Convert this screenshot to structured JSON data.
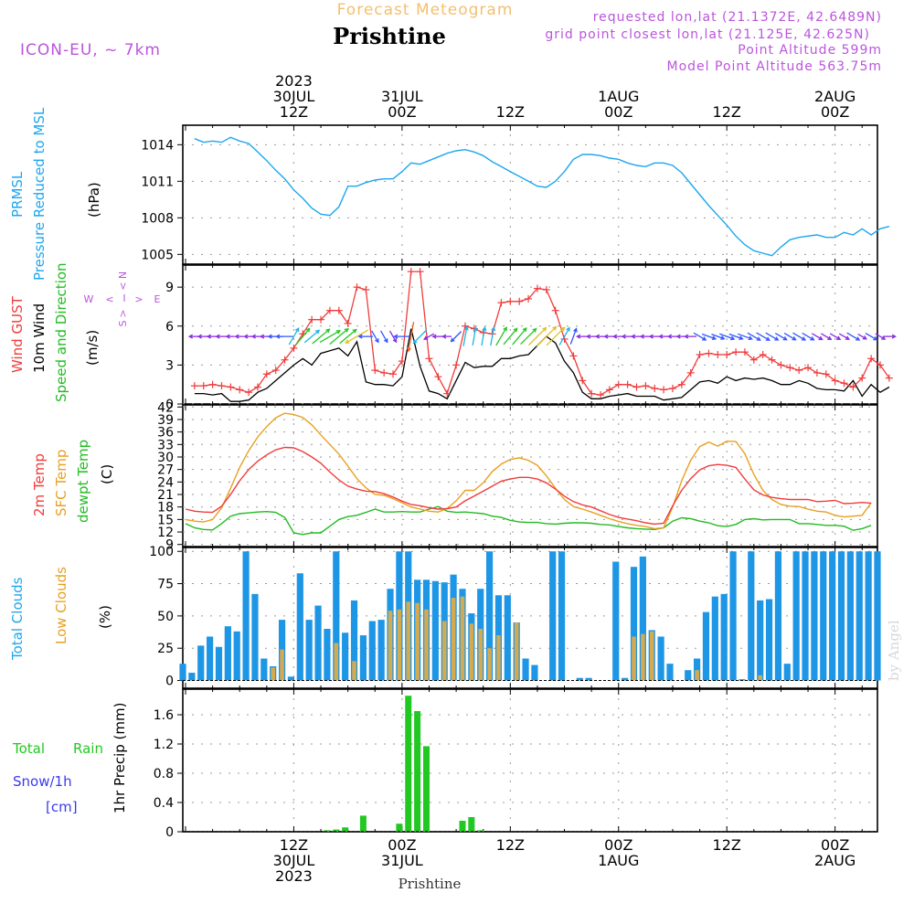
{
  "header": {
    "product": "Forecast Meteogram",
    "location": "Prishtine",
    "model": "ICON-EU, ~ 7km",
    "requested": "requested lon,lat (21.1372E, 42.6489N)",
    "grid_point": "grid point closest lon,lat (21.125E, 42.625N)",
    "point_alt": "Point Altitude 599m",
    "model_alt": "Model Point Altitude 563.75m",
    "watermark": "by Angel",
    "bottom_label": "Prishtine"
  },
  "time_axis": {
    "top_labels": [
      {
        "hour": 12,
        "lines": [
          "2023",
          "30JUL",
          "12Z"
        ]
      },
      {
        "hour": 24,
        "lines": [
          "31JUL",
          "00Z"
        ]
      },
      {
        "hour": 36,
        "lines": [
          "12Z"
        ]
      },
      {
        "hour": 48,
        "lines": [
          "1AUG",
          "00Z"
        ]
      },
      {
        "hour": 60,
        "lines": [
          "12Z"
        ]
      },
      {
        "hour": 72,
        "lines": [
          "2AUG",
          "00Z"
        ]
      }
    ],
    "bottom_labels": [
      {
        "hour": 12,
        "lines": [
          "12Z",
          "30JUL",
          "2023"
        ]
      },
      {
        "hour": 24,
        "lines": [
          "00Z",
          "31JUL"
        ]
      },
      {
        "hour": 36,
        "lines": [
          "12Z"
        ]
      },
      {
        "hour": 48,
        "lines": [
          "00Z",
          "1AUG"
        ]
      },
      {
        "hour": 60,
        "lines": [
          "12Z"
        ]
      },
      {
        "hour": 72,
        "lines": [
          "00Z",
          "2AUG"
        ]
      }
    ]
  },
  "panel_labels": {
    "pressure": [
      "PRMSL",
      "Pressure Reduced to MSL",
      "(hPa)"
    ],
    "wind": [
      "Wind GUST",
      "10m Wind",
      "Speed and Direction",
      "(m/s)"
    ],
    "compass": [
      "N",
      "<",
      "I",
      ">",
      "S",
      "W",
      "E"
    ],
    "temp": [
      "2m Temp",
      "SFC Temp",
      "dewpt Temp",
      "(C)"
    ],
    "clouds": [
      "Total Clouds",
      "Low Clouds",
      "(%)"
    ],
    "precip": [
      "Total",
      "Rain",
      "Snow/1h",
      "[cm]",
      "1hr Precip (mm)"
    ]
  },
  "colors": {
    "pressure": "#1ea6ee",
    "gust": "#f03c3c",
    "wind": "#000000",
    "temp2m": "#f03c3c",
    "sfc": "#e8a020",
    "dewpt": "#22bb22",
    "total_cloud": "#1e96e6",
    "low_cloud": "#d4aa50",
    "rain": "#22c822",
    "purple": "#bb55dd"
  },
  "chart_data": [
    {
      "type": "line",
      "title": "PRMSL Pressure Reduced to MSL",
      "ylabel": "(hPa)",
      "yticks": [
        1005,
        1008,
        1011,
        1014
      ],
      "ylim": [
        1004.2,
        1015.6
      ],
      "series": [
        {
          "name": "PRMSL",
          "x_start": 1,
          "values": [
            1014.5,
            1014.2,
            1014.3,
            1014.2,
            1014.6,
            1014.3,
            1014.1,
            1013.4,
            1012.7,
            1011.9,
            1011.2,
            1010.3,
            1009.6,
            1008.8,
            1008.3,
            1008.2,
            1008.9,
            1010.6,
            1010.6,
            1010.9,
            1011.1,
            1011.2,
            1011.2,
            1011.8,
            1012.5,
            1012.4,
            1012.7,
            1013.0,
            1013.3,
            1013.5,
            1013.6,
            1013.4,
            1013.1,
            1012.6,
            1012.2,
            1011.8,
            1011.4,
            1011.0,
            1010.6,
            1010.5,
            1011.0,
            1011.8,
            1012.8,
            1013.2,
            1013.2,
            1013.1,
            1012.9,
            1012.8,
            1012.5,
            1012.3,
            1012.2,
            1012.5,
            1012.5,
            1012.3,
            1011.7,
            1010.8,
            1009.9,
            1009.0,
            1008.2,
            1007.4,
            1006.5,
            1005.8,
            1005.3,
            1005.1,
            1004.9,
            1005.6,
            1006.2,
            1006.4,
            1006.5,
            1006.6,
            1006.4,
            1006.4,
            1006.8,
            1006.6,
            1007.1,
            1006.6,
            1007.1,
            1007.3
          ]
        }
      ]
    },
    {
      "type": "line",
      "title": "Wind GUST / 10m Wind Speed and Direction",
      "ylabel": "(m/s)",
      "yticks": [
        0,
        3,
        6,
        9
      ],
      "ylim": [
        0,
        10.7
      ],
      "series": [
        {
          "name": "Wind GUST",
          "x_start": 1,
          "values": [
            1.4,
            1.4,
            1.5,
            1.4,
            1.3,
            1.1,
            0.9,
            1.3,
            2.3,
            2.6,
            3.4,
            4.3,
            5.4,
            6.5,
            6.5,
            7.2,
            7.2,
            6.2,
            9.0,
            8.8,
            2.6,
            2.4,
            2.3,
            3.3,
            10.2,
            10.2,
            3.5,
            2.1,
            0.8,
            3.0,
            6.0,
            5.8,
            5.5,
            5.4,
            7.8,
            7.9,
            7.9,
            8.1,
            8.9,
            8.8,
            7.2,
            5.0,
            3.7,
            1.8,
            0.8,
            0.7,
            1.1,
            1.5,
            1.5,
            1.3,
            1.4,
            1.2,
            1.1,
            1.2,
            1.5,
            2.4,
            3.8,
            3.9,
            3.8,
            3.8,
            4.0,
            4.0,
            3.4,
            3.8,
            3.4,
            3.0,
            2.8,
            2.6,
            2.8,
            2.4,
            2.3,
            1.8,
            1.6,
            1.3,
            2.0,
            3.5,
            3.0,
            2.0
          ]
        },
        {
          "name": "10m Wind",
          "x_start": 1,
          "values": [
            0.8,
            0.8,
            0.7,
            0.8,
            0.2,
            0.2,
            0.3,
            0.9,
            1.2,
            1.8,
            2.4,
            3.0,
            3.5,
            3.0,
            3.9,
            4.1,
            4.3,
            3.7,
            4.8,
            1.7,
            1.5,
            1.5,
            1.4,
            2.1,
            5.8,
            2.9,
            1.0,
            0.8,
            0.4,
            1.8,
            3.2,
            2.8,
            2.9,
            2.9,
            3.5,
            3.5,
            3.7,
            3.8,
            4.5,
            5.2,
            4.7,
            3.3,
            2.4,
            0.9,
            0.4,
            0.4,
            0.6,
            0.7,
            0.8,
            0.6,
            0.6,
            0.6,
            0.3,
            0.4,
            0.5,
            1.1,
            1.7,
            1.8,
            1.6,
            2.1,
            1.8,
            2.0,
            1.9,
            2.0,
            1.8,
            1.5,
            1.5,
            1.8,
            1.6,
            1.2,
            1.1,
            1.1,
            1.0,
            1.8,
            0.6,
            1.5,
            0.9,
            1.3
          ]
        },
        {
          "name": "Wind direction (deg, from)",
          "x_start": 1,
          "values": [
            90,
            90,
            90,
            90,
            90,
            90,
            90,
            90,
            90,
            90,
            90,
            210,
            220,
            230,
            230,
            240,
            230,
            230,
            60,
            90,
            330,
            330,
            330,
            90,
            10,
            45,
            60,
            90,
            90,
            45,
            190,
            190,
            190,
            190,
            210,
            220,
            220,
            225,
            225,
            225,
            225,
            210,
            200,
            90,
            90,
            90,
            90,
            90,
            90,
            90,
            90,
            90,
            90,
            90,
            90,
            90,
            300,
            290,
            290,
            290,
            290,
            290,
            300,
            300,
            300,
            300,
            300,
            300,
            300,
            300,
            300,
            300,
            300,
            300,
            300,
            300,
            300,
            270
          ]
        }
      ]
    },
    {
      "type": "line",
      "title": "Temperatures",
      "ylabel": "(C)",
      "yticks": [
        9,
        12,
        15,
        18,
        21,
        24,
        27,
        30,
        33,
        36,
        39,
        42
      ],
      "ylim": [
        8.5,
        42.5
      ],
      "series": [
        {
          "name": "2m Temp",
          "x_start": 0,
          "values": [
            17.5,
            17.0,
            16.8,
            16.7,
            18.2,
            21.0,
            24.3,
            27.0,
            29.0,
            30.5,
            31.7,
            32.3,
            32.2,
            31.3,
            30.0,
            28.5,
            26.4,
            24.5,
            23.0,
            22.3,
            21.8,
            21.7,
            21.2,
            20.4,
            19.4,
            18.6,
            18.3,
            17.8,
            17.5,
            17.6,
            18.0,
            19.5,
            20.6,
            21.8,
            23.0,
            24.2,
            24.7,
            25.1,
            25.1,
            24.7,
            23.8,
            22.3,
            20.6,
            19.3,
            18.5,
            18.0,
            17.1,
            16.2,
            15.5,
            15.1,
            14.7,
            14.2,
            13.9,
            14.1,
            18.3,
            22.0,
            24.8,
            26.9,
            27.9,
            28.2,
            28.0,
            27.5,
            24.7,
            22.1,
            20.9,
            20.3,
            20.0,
            19.8,
            19.8,
            19.8,
            19.3,
            19.4,
            19.6,
            18.8,
            18.9,
            19.1,
            18.9
          ]
        },
        {
          "name": "SFC Temp",
          "x_start": 0,
          "values": [
            15.0,
            14.6,
            14.4,
            15.0,
            17.8,
            22.5,
            27.5,
            31.5,
            34.8,
            37.3,
            39.4,
            40.5,
            40.2,
            39.5,
            37.7,
            35.3,
            33.0,
            30.7,
            27.8,
            24.8,
            22.6,
            21.0,
            20.8,
            20.0,
            19.0,
            18.0,
            17.5,
            17.0,
            16.8,
            17.6,
            19.5,
            22.0,
            22.0,
            23.8,
            26.5,
            28.3,
            29.4,
            29.8,
            29.2,
            28.0,
            25.5,
            22.5,
            19.8,
            18.1,
            17.5,
            16.8,
            16.0,
            15.2,
            14.5,
            14.0,
            13.6,
            13.3,
            12.8,
            13.0,
            18.0,
            24.3,
            29.2,
            32.5,
            33.6,
            32.6,
            33.8,
            33.7,
            30.8,
            25.8,
            22.0,
            19.8,
            18.6,
            18.2,
            18.1,
            17.5,
            17.0,
            16.8,
            16.0,
            15.6,
            15.8,
            16.0,
            19.0
          ]
        },
        {
          "name": "dewpt Temp",
          "x_start": 0,
          "values": [
            14.0,
            13.0,
            12.6,
            12.5,
            14.0,
            15.8,
            16.4,
            16.6,
            16.8,
            16.9,
            16.7,
            15.5,
            11.8,
            11.4,
            11.8,
            11.8,
            13.4,
            15.0,
            15.7,
            16.0,
            16.7,
            17.5,
            16.8,
            16.8,
            16.9,
            16.8,
            16.8,
            17.5,
            18.1,
            17.0,
            16.7,
            16.8,
            16.6,
            16.4,
            15.8,
            15.5,
            14.8,
            14.4,
            14.3,
            14.3,
            14.0,
            13.9,
            14.1,
            14.2,
            14.2,
            14.1,
            13.8,
            13.7,
            13.3,
            13.0,
            12.8,
            12.7,
            12.6,
            13.0,
            14.6,
            15.4,
            15.2,
            14.6,
            14.2,
            13.5,
            13.3,
            13.8,
            15.0,
            15.2,
            14.9,
            15.0,
            15.0,
            15.0,
            14.0,
            14.0,
            13.8,
            13.6,
            13.6,
            13.4,
            12.4,
            12.8,
            13.6
          ]
        }
      ]
    },
    {
      "type": "bar",
      "title": "Total Clouds / Low Clouds",
      "ylabel": "(%)",
      "yticks": [
        0,
        25,
        50,
        75,
        100
      ],
      "ylim": [
        -6,
        103
      ],
      "series": [
        {
          "name": "Total Clouds",
          "x_start": 0,
          "values": [
            13,
            6,
            27,
            34,
            26,
            42,
            38,
            100,
            67,
            17,
            11,
            47,
            3,
            83,
            47,
            58,
            40,
            100,
            37,
            62,
            35,
            46,
            47,
            71,
            100,
            100,
            78,
            78,
            77,
            76,
            82,
            71,
            52,
            71,
            100,
            66,
            66,
            45,
            17,
            12,
            0,
            100,
            100,
            0,
            2,
            2,
            0,
            0,
            92,
            2,
            88,
            96,
            39,
            34,
            13,
            0,
            8,
            17,
            53,
            65,
            67,
            100,
            1,
            100,
            62,
            63,
            100,
            13,
            100,
            100,
            100,
            100,
            100,
            100,
            100,
            100,
            100,
            100
          ]
        },
        {
          "name": "Low Clouds",
          "x_start": 0,
          "values": [
            0,
            0,
            0,
            0,
            0,
            0,
            0,
            0,
            0,
            0,
            10,
            24,
            0,
            0,
            0,
            0,
            0,
            29,
            0,
            15,
            0,
            0,
            0,
            54,
            55,
            61,
            60,
            55,
            0,
            46,
            64,
            65,
            44,
            40,
            25,
            35,
            0,
            45,
            0,
            0,
            0,
            0,
            0,
            0,
            0,
            0,
            0,
            0,
            0,
            0,
            34,
            36,
            38,
            0,
            0,
            0,
            0,
            8,
            0,
            0,
            0,
            0,
            0,
            0,
            4,
            0,
            0,
            0,
            0,
            0,
            0,
            0,
            0,
            0,
            0,
            0,
            0,
            0
          ]
        }
      ]
    },
    {
      "type": "bar",
      "title": "1hr Precip",
      "ylabel": "1hr Precip (mm)",
      "yticks": [
        0,
        0.4,
        0.8,
        1.2,
        1.6
      ],
      "ylim": [
        0,
        1.95
      ],
      "series": [
        {
          "name": "Total Rain",
          "x_start": 0,
          "values": [
            0,
            0,
            0,
            0,
            0,
            0,
            0,
            0,
            0,
            0,
            0,
            0,
            0,
            0,
            0,
            0,
            0.02,
            0.03,
            0.06,
            0,
            0.22,
            0,
            0,
            0,
            0.11,
            1.86,
            1.65,
            1.17,
            0,
            0,
            0,
            0.15,
            0.2,
            0.02,
            0,
            0,
            0,
            0,
            0,
            0,
            0,
            0,
            0,
            0,
            0,
            0,
            0,
            0,
            0,
            0,
            0,
            0,
            0,
            0,
            0,
            0,
            0,
            0,
            0,
            0,
            0,
            0,
            0,
            0,
            0,
            0,
            0,
            0,
            0,
            0,
            0,
            0,
            0,
            0,
            0,
            0,
            0,
            0
          ]
        }
      ]
    }
  ]
}
